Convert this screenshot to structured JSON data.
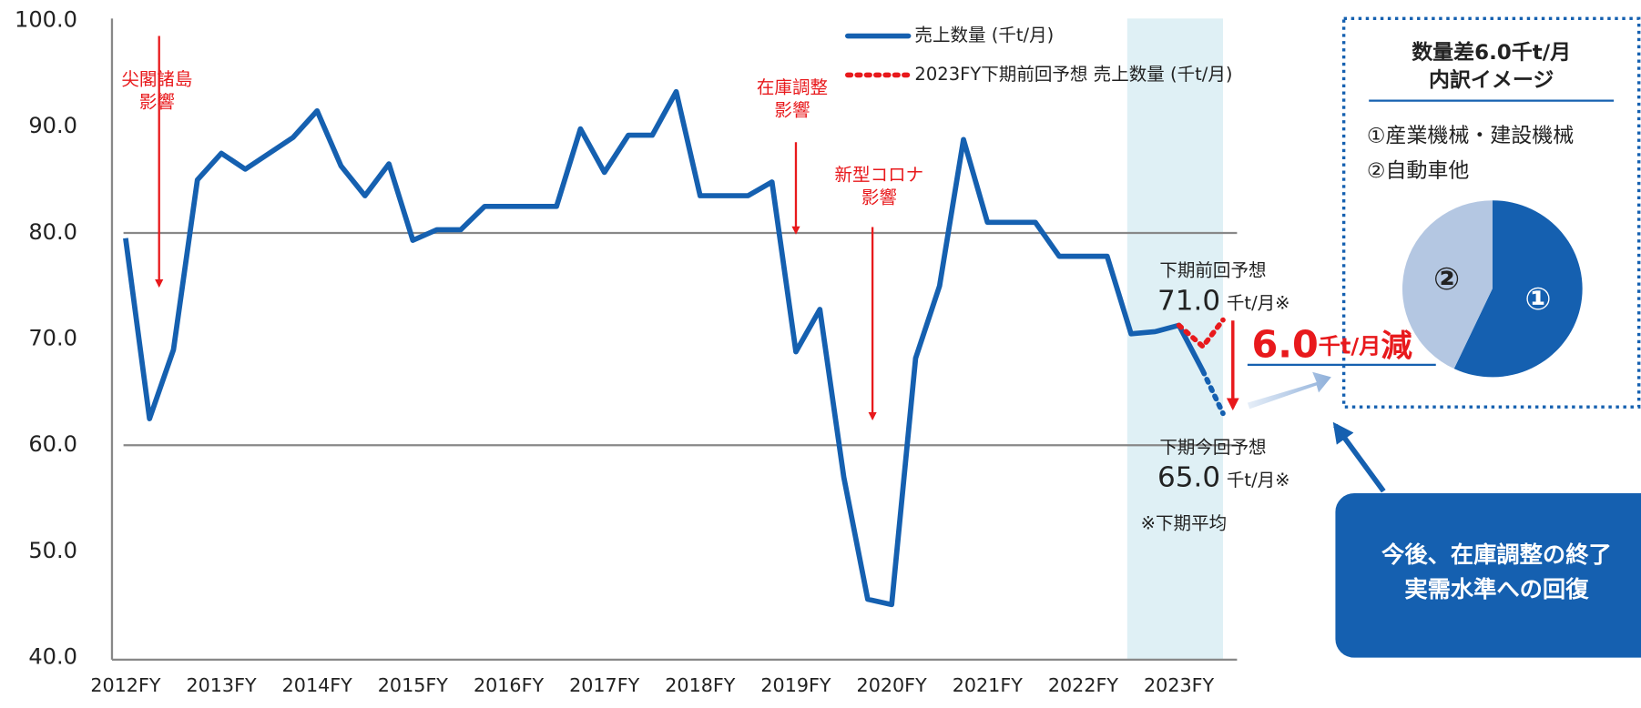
{
  "chart_data": {
    "type": "line",
    "xlim": [
      2011.9,
      2023.66
    ],
    "xticks": [
      {
        "value": 2012,
        "label": "2012FY"
      },
      {
        "value": 2013,
        "label": "2013FY"
      },
      {
        "value": 2014,
        "label": "2014FY"
      },
      {
        "value": 2015,
        "label": "2015FY"
      },
      {
        "value": 2016,
        "label": "2016FY"
      },
      {
        "value": 2017,
        "label": "2017FY"
      },
      {
        "value": 2018,
        "label": "2018FY"
      },
      {
        "value": 2019,
        "label": "2019FY"
      },
      {
        "value": 2020,
        "label": "2020FY"
      },
      {
        "value": 2021,
        "label": "2021FY"
      },
      {
        "value": 2022,
        "label": "2022FY"
      },
      {
        "value": 2023,
        "label": "2023FY"
      }
    ],
    "ylim": [
      40,
      100
    ],
    "yticks": [
      {
        "value": 40,
        "label": "40.0"
      },
      {
        "value": 50,
        "label": "50.0"
      },
      {
        "value": 60,
        "label": "60.0"
      },
      {
        "value": 70,
        "label": "70.0"
      },
      {
        "value": 80,
        "label": "80.0"
      },
      {
        "value": 90,
        "label": "90.0"
      },
      {
        "value": 100,
        "label": "100.0"
      }
    ],
    "reference_lines": [
      80,
      60
    ],
    "highlight_x": [
      2022.46,
      2023.46
    ],
    "series": [
      {
        "name": "売上数量 (千t/月)",
        "color": "#1560b0",
        "style": "solid",
        "x": [
          2012,
          2012.25,
          2012.5,
          2012.75,
          2013,
          2013.25,
          2013.5,
          2013.75,
          2014,
          2014.25,
          2014.5,
          2014.75,
          2015,
          2015.25,
          2015.5,
          2015.75,
          2016,
          2016.25,
          2016.5,
          2016.75,
          2017,
          2017.25,
          2017.5,
          2017.75,
          2018,
          2018.25,
          2018.5,
          2018.75,
          2019,
          2019.25,
          2019.5,
          2019.75,
          2020,
          2020.25,
          2020.5,
          2020.75,
          2021,
          2021.25,
          2021.5,
          2021.75,
          2022,
          2022.25,
          2022.5,
          2022.75,
          2023,
          2023.25
        ],
        "values": [
          79.5,
          62.5,
          69,
          85,
          87.5,
          86,
          87.5,
          89,
          91.5,
          86.3,
          83.5,
          86.5,
          79.3,
          80.3,
          80.3,
          82.5,
          82.5,
          82.5,
          82.5,
          89.8,
          85.7,
          89.2,
          89.2,
          93.3,
          83.5,
          83.5,
          83.5,
          84.8,
          68.8,
          72.8,
          57,
          45.5,
          45,
          68.2,
          75,
          88.8,
          81,
          81,
          81,
          77.8,
          77.8,
          77.8,
          70.5,
          70.7,
          71.3,
          67
        ]
      },
      {
        "name": "2023FY下期前回予想 売上数量 (千t/月)",
        "color": "#e8191c",
        "style": "dotted",
        "x": [
          2023,
          2023.25,
          2023.46
        ],
        "values": [
          71.3,
          69.3,
          71.8
        ]
      }
    ],
    "forecast_line": {
      "color": "#1560b0",
      "style": "dotted",
      "x": [
        2023.25,
        2023.46
      ],
      "values": [
        67,
        63
      ]
    },
    "annotations": [
      {
        "lines": [
          "尖閣諸島",
          "影響"
        ],
        "arrow_x": 2012.35,
        "arrow_from": 100,
        "arrow_to": 75
      },
      {
        "lines": [
          "在庫調整",
          "影響"
        ],
        "arrow_x": 2019,
        "arrow_from": 90,
        "arrow_to": 80
      },
      {
        "lines": [
          "新型コロナ",
          "影響"
        ],
        "arrow_x": 2019.8,
        "arrow_from": 82,
        "arrow_to": 62.5
      }
    ],
    "previous_forecast": {
      "label": "下期前回予想",
      "value_label": "71.0",
      "unit": "千t/月※"
    },
    "current_forecast": {
      "label": "下期今回予想",
      "value_label": "65.0",
      "unit": "千t/月※"
    },
    "note": "※下期平均",
    "difference": {
      "value": "6.0",
      "unit": "千t/月",
      "suffix": "減"
    },
    "breakdown": {
      "type": "pie",
      "title_lines": [
        "数量差6.0千t/月",
        "内訳イメージ"
      ],
      "items": [
        "①産業機械・建設機械",
        "②自動車他"
      ],
      "categories": [
        "①",
        "②"
      ],
      "values": [
        57,
        43
      ],
      "colors": [
        "#1560b0",
        "#b4c7e2"
      ]
    },
    "callout_lines": [
      "今後、在庫調整の終了",
      "実需水準への回復"
    ]
  }
}
